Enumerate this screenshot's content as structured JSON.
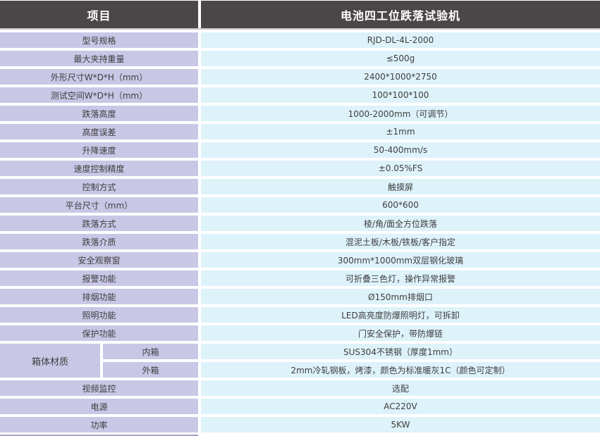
{
  "header": {
    "item_col": "项目",
    "product_col": "电池四工位跌落试验机"
  },
  "rows": [
    {
      "label": "型号规格",
      "value": "RJD-DL-4L-2000"
    },
    {
      "label": "最大夹持重量",
      "value": "≤500g"
    },
    {
      "label": "外形尺寸W*D*H（mm）",
      "value": "2400*1000*2750"
    },
    {
      "label": "测试空间W*D*H（mm）",
      "value": "100*100*100"
    },
    {
      "label": "跌落高度",
      "value": "1000-2000mm（可调节）"
    },
    {
      "label": "高度误差",
      "value": "±1mm"
    },
    {
      "label": "升降速度",
      "value": "50-400mm/s"
    },
    {
      "label": "速度控制精度",
      "value": "±0.05%FS"
    },
    {
      "label": "控制方式",
      "value": "触摸屏"
    },
    {
      "label": "平台尺寸（mm）",
      "value": "600*600"
    },
    {
      "label": "跌落方式",
      "value": "棱/角/面全方位跌落"
    },
    {
      "label": "跌落介质",
      "value": "混泥土板/木板/铁板/客户指定"
    },
    {
      "label": "安全观察窗",
      "value": "300mm*1000mm双层钢化玻璃"
    },
    {
      "label": "报警功能",
      "value": "可折叠三色灯，操作异常报警"
    },
    {
      "label": "排烟功能",
      "value": "Ø150mm排烟口"
    },
    {
      "label": "照明功能",
      "value": "LED高亮度防爆照明灯，可拆卸"
    },
    {
      "label": "保护功能",
      "value": "门安全保护，带防爆链"
    }
  ],
  "material_group": {
    "label": "箱体材质",
    "sub_rows": [
      {
        "label": "内箱",
        "value": "SUS304不锈钢（厚度1mm）"
      },
      {
        "label": "外箱",
        "value": "2mm冷轧钢板，烤漆，颜色为标准暖灰1C（颜色可定制）"
      }
    ]
  },
  "rows_after": [
    {
      "label": "视频监控",
      "value": "选配"
    },
    {
      "label": "电源",
      "value": "AC220V"
    },
    {
      "label": "功率",
      "value": "5KW"
    }
  ],
  "colors": {
    "header_bg": "#4B4749",
    "header_text": "#FFFFFF",
    "label_cell_bg": "#C9C7E6",
    "value_cell_bg": "#DEF2FA",
    "cell_text": "#3E3E3E",
    "header_divider": "#CBC6C3",
    "bottom_strip": "#A5A1C3"
  }
}
